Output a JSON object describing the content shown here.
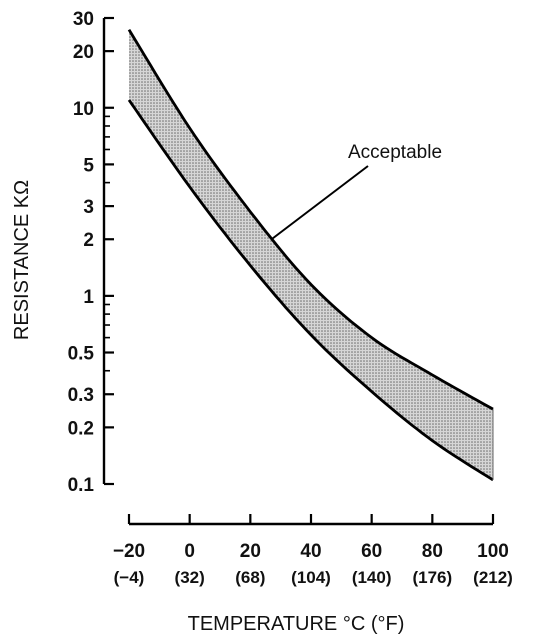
{
  "chart_data": {
    "type": "area",
    "xlabel": "TEMPERATURE °C (°F)",
    "ylabel": "RESISTANCE KΩ",
    "y_scale": "log",
    "xlim": [
      -20,
      100
    ],
    "ylim": [
      0.1,
      30
    ],
    "x_ticks": [
      {
        "value": -20,
        "label": "−20",
        "sub": "(−4)"
      },
      {
        "value": 0,
        "label": "0",
        "sub": "(32)"
      },
      {
        "value": 20,
        "label": "20",
        "sub": "(68)"
      },
      {
        "value": 40,
        "label": "40",
        "sub": "(104)"
      },
      {
        "value": 60,
        "label": "60",
        "sub": "(140)"
      },
      {
        "value": 80,
        "label": "80",
        "sub": "(176)"
      },
      {
        "value": 100,
        "label": "100",
        "sub": "(212)"
      }
    ],
    "y_ticks": [
      {
        "value": 30,
        "label": "30"
      },
      {
        "value": 20,
        "label": "20"
      },
      {
        "value": 10,
        "label": "10"
      },
      {
        "value": 5,
        "label": "5"
      },
      {
        "value": 3,
        "label": "3"
      },
      {
        "value": 2,
        "label": "2"
      },
      {
        "value": 1,
        "label": "1"
      },
      {
        "value": 0.5,
        "label": "0.5"
      },
      {
        "value": 0.3,
        "label": "0.3"
      },
      {
        "value": 0.2,
        "label": "0.2"
      },
      {
        "value": 0.1,
        "label": "0.1"
      }
    ],
    "y_minor_ticks": [
      9,
      8,
      7,
      6,
      4,
      0.9,
      0.8,
      0.7,
      0.6,
      0.4
    ],
    "band": {
      "x": [
        -20,
        0,
        20,
        40,
        60,
        80,
        100
      ],
      "upper": [
        26,
        7.8,
        2.8,
        1.15,
        0.6,
        0.38,
        0.25
      ],
      "lower": [
        11,
        3.8,
        1.45,
        0.62,
        0.31,
        0.17,
        0.105
      ],
      "fill_color": "#bdbdbd",
      "line_color": "#000000"
    },
    "annotations": [
      {
        "text": "Acceptable",
        "x": 27,
        "y": 2.0
      }
    ],
    "grid": false
  }
}
